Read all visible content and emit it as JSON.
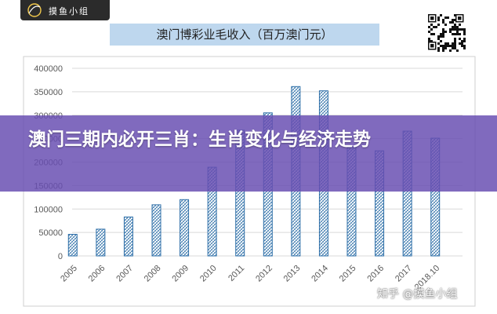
{
  "brand": {
    "logo_text": "摸鱼小组"
  },
  "banner": {
    "headline": "澳门三期内必开三肖：生肖变化与经济走势"
  },
  "watermark": {
    "text": "知乎 @摸鱼小组"
  },
  "chart_data": {
    "type": "bar",
    "title": "澳门博彩业毛收入（百万澳门元）",
    "categories": [
      "2005",
      "2006",
      "2007",
      "2008",
      "2009",
      "2010",
      "2011",
      "2012",
      "2013",
      "2014",
      "2015",
      "2016",
      "2017",
      "2018.10"
    ],
    "values": [
      46000,
      57000,
      83000,
      109000,
      120000,
      189000,
      268000,
      305000,
      361000,
      352000,
      231000,
      224000,
      266000,
      251000
    ],
    "ylim": [
      0,
      400000
    ],
    "yticks": [
      "0",
      "50000",
      "100000",
      "150000",
      "200000",
      "250000",
      "300000",
      "350000",
      "400000"
    ],
    "grid": true,
    "legend": "none",
    "bar_color": "#2e6fa8"
  }
}
